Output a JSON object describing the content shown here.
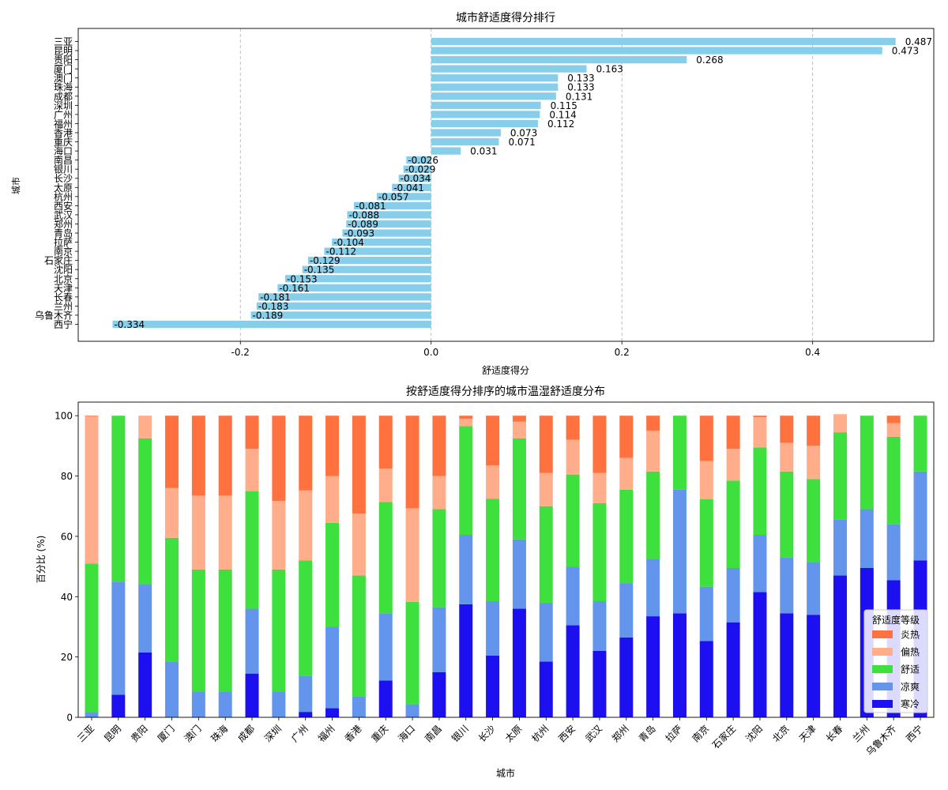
{
  "colors": {
    "rank_bar": "#87CEEB",
    "cold": "#1C0FF0",
    "cool": "#6495ED",
    "comfortable": "#3DE03D",
    "warm": "#FFAD8A",
    "hot": "#FF7240"
  },
  "chart_data": [
    {
      "type": "bar",
      "orientation": "horizontal",
      "title": "城市舒适度得分排行",
      "xlabel": "舒适度得分",
      "ylabel": "城市",
      "xlim": [
        -0.37,
        0.527
      ],
      "xticks": [
        -0.2,
        0.0,
        0.2,
        0.4
      ],
      "xtick_labels": [
        "-0.2",
        "0.0",
        "0.2",
        "0.4"
      ],
      "grid": "x-dashed",
      "categories": [
        "三亚",
        "昆明",
        "贵阳",
        "厦门",
        "澳门",
        "珠海",
        "成都",
        "深圳",
        "广州",
        "福州",
        "香港",
        "重庆",
        "海口",
        "南昌",
        "银川",
        "长沙",
        "太原",
        "杭州",
        "西安",
        "武汉",
        "郑州",
        "青岛",
        "拉萨",
        "南京",
        "石家庄",
        "沈阳",
        "北京",
        "天津",
        "长春",
        "兰州",
        "乌鲁木齐",
        "西宁"
      ],
      "values": [
        0.487,
        0.473,
        0.268,
        0.163,
        0.133,
        0.133,
        0.131,
        0.115,
        0.114,
        0.112,
        0.073,
        0.071,
        0.031,
        -0.026,
        -0.029,
        -0.034,
        -0.041,
        -0.057,
        -0.081,
        -0.088,
        -0.089,
        -0.093,
        -0.104,
        -0.112,
        -0.129,
        -0.135,
        -0.153,
        -0.161,
        -0.181,
        -0.183,
        -0.189,
        -0.334
      ],
      "labels": [
        "0.487",
        "0.473",
        "0.268",
        "0.163",
        "0.133",
        "0.133",
        "0.131",
        "0.115",
        "0.114",
        "0.112",
        "0.073",
        "0.071",
        "0.031",
        "-0.026",
        "-0.029",
        "-0.034",
        "-0.041",
        "-0.057",
        "-0.081",
        "-0.088",
        "-0.089",
        "-0.093",
        "-0.104",
        "-0.112",
        "-0.129",
        "-0.135",
        "-0.153",
        "-0.161",
        "-0.181",
        "-0.183",
        "-0.189",
        "-0.334"
      ]
    },
    {
      "type": "bar",
      "stacked": true,
      "title": "按舒适度得分排序的城市温湿舒适度分布",
      "xlabel": "城市",
      "ylabel": "百分比 (%)",
      "ylim": [
        0,
        104.5
      ],
      "yticks": [
        0,
        20,
        40,
        60,
        80,
        100
      ],
      "legend_title": "舒适度等级",
      "legend_position": "lower-right",
      "categories": [
        "三亚",
        "昆明",
        "贵阳",
        "厦门",
        "澳门",
        "珠海",
        "成都",
        "深圳",
        "广州",
        "福州",
        "香港",
        "重庆",
        "海口",
        "南昌",
        "银川",
        "长沙",
        "太原",
        "杭州",
        "西安",
        "武汉",
        "郑州",
        "青岛",
        "拉萨",
        "南京",
        "石家庄",
        "沈阳",
        "北京",
        "天津",
        "长春",
        "兰州",
        "乌鲁木齐",
        "西宁"
      ],
      "series": [
        {
          "name": "寒冷",
          "color_key": "cold",
          "values": [
            0,
            7.5,
            21.5,
            0,
            0,
            0,
            14.5,
            0,
            1.8,
            3,
            0,
            12.2,
            0,
            15,
            37.5,
            20.5,
            36,
            18.5,
            30.5,
            22,
            26.5,
            33.5,
            34.5,
            25.3,
            31.5,
            41.5,
            34.5,
            34,
            47,
            49.5,
            45.5,
            52
          ]
        },
        {
          "name": "凉爽",
          "color_key": "cool",
          "values": [
            1.8,
            37.5,
            22.5,
            18.5,
            8.5,
            8.5,
            21.5,
            8.5,
            12,
            27,
            7,
            22.3,
            4.3,
            21.5,
            23,
            18,
            23,
            19.5,
            19.5,
            16.5,
            18,
            19,
            41,
            18,
            18,
            19,
            18.5,
            17.5,
            18.5,
            19.5,
            18.5,
            29.5
          ]
        },
        {
          "name": "舒适",
          "color_key": "comfortable",
          "values": [
            49.2,
            55,
            48.5,
            41,
            40.5,
            40.5,
            39,
            40.5,
            38.2,
            34.5,
            40,
            36.9,
            34,
            32.5,
            36,
            34,
            33.5,
            32,
            30.5,
            32.5,
            31,
            29,
            24.5,
            29,
            29,
            29,
            28.5,
            27.5,
            29,
            31,
            29,
            18.5
          ]
        },
        {
          "name": "偏热",
          "color_key": "warm",
          "values": [
            48.8,
            0,
            7.5,
            16.5,
            24.5,
            24.5,
            14,
            22.7,
            23.2,
            15.5,
            20.5,
            11.1,
            31,
            11,
            2.5,
            11,
            5.5,
            11,
            11.5,
            10,
            10.5,
            13.5,
            0,
            12.7,
            10.5,
            10,
            9.5,
            11,
            6,
            0,
            4.5,
            0
          ]
        },
        {
          "name": "炎热",
          "color_key": "hot",
          "values": [
            0.2,
            0,
            0,
            24,
            26.5,
            26.5,
            11,
            28.3,
            24.8,
            20,
            32.5,
            17.5,
            30.7,
            20,
            1,
            16.5,
            2,
            19,
            8,
            19,
            14,
            5,
            0,
            15,
            11,
            0.5,
            9,
            10,
            0,
            0,
            2.5,
            0
          ]
        }
      ]
    }
  ]
}
